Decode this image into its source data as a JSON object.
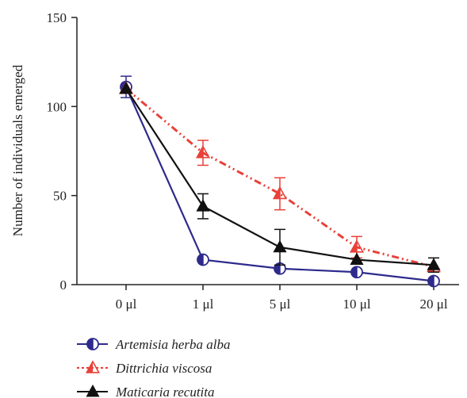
{
  "chart_data": {
    "type": "line",
    "categories": [
      "0 μl",
      "1 μl",
      "5 μl",
      "10 μl",
      "20 μl"
    ],
    "ylabel": "Number of individuals emerged",
    "xlabel": "",
    "ylim": [
      0,
      150
    ],
    "yticks": [
      0,
      50,
      100,
      150
    ],
    "grid": false,
    "legend_position": "bottom-left",
    "series": [
      {
        "name": "Artemisia herba alba",
        "color": "#2e2a8c",
        "line_style": "solid",
        "marker": "half-filled-circle",
        "values": [
          111,
          14,
          9,
          7,
          2
        ],
        "errors": [
          6,
          0,
          0,
          0,
          0
        ]
      },
      {
        "name": "Dittrichia viscosa",
        "color": "#e8413a",
        "line_style": "dash-dot-dot",
        "marker": "half-filled-triangle",
        "values": [
          110,
          74,
          51,
          21,
          10
        ],
        "errors": [
          0,
          7,
          9,
          6,
          0
        ]
      },
      {
        "name": "Maticaria recutita",
        "color": "#111111",
        "line_style": "solid",
        "marker": "filled-triangle",
        "values": [
          110,
          44,
          21,
          14,
          11
        ],
        "errors": [
          0,
          7,
          10,
          0,
          4
        ]
      }
    ]
  }
}
